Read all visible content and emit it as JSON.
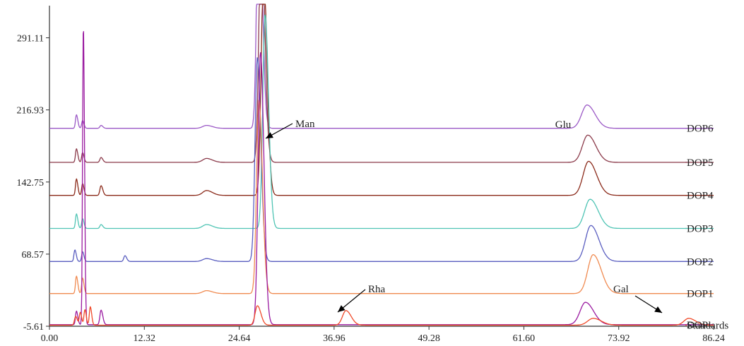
{
  "chart_data": {
    "type": "line",
    "title": "",
    "xlabel": "",
    "ylabel": "",
    "xlim": [
      0.0,
      86.24
    ],
    "ylim": [
      -5.61,
      330
    ],
    "x_ticks": [
      "0.00",
      "12.32",
      "24.64",
      "36.96",
      "49.28",
      "61.60",
      "73.92",
      "86.24"
    ],
    "y_ticks": [
      "-5.61",
      "68.57",
      "142.75",
      "216.93",
      "291.11"
    ],
    "x_tick_values": [
      0.0,
      12.32,
      24.64,
      36.96,
      49.28,
      61.6,
      73.92,
      86.24
    ],
    "y_tick_values": [
      -5.61,
      68.57,
      142.75,
      216.93,
      291.11
    ],
    "series": [
      {
        "name": "DOP6",
        "color": "#9b59c6",
        "baseline": 198,
        "peaks": [
          {
            "x": 3.5,
            "h": 14,
            "w": 0.12
          },
          {
            "x": 4.3,
            "h": 8,
            "w": 0.12
          },
          {
            "x": 6.7,
            "h": 3,
            "w": 0.15
          },
          {
            "x": 20.4,
            "h": 3,
            "w": 0.5
          },
          {
            "x": 27.2,
            "h": 260,
            "w": 0.28
          },
          {
            "x": 69.8,
            "h": 24,
            "w": 0.7
          }
        ]
      },
      {
        "name": "DOP5",
        "color": "#8b3a4a",
        "baseline": 163,
        "peaks": [
          {
            "x": 3.5,
            "h": 14,
            "w": 0.12
          },
          {
            "x": 4.3,
            "h": 10,
            "w": 0.12
          },
          {
            "x": 6.7,
            "h": 5,
            "w": 0.15
          },
          {
            "x": 20.4,
            "h": 4,
            "w": 0.5
          },
          {
            "x": 27.5,
            "h": 240,
            "w": 0.3
          },
          {
            "x": 69.9,
            "h": 28,
            "w": 0.7
          }
        ]
      },
      {
        "name": "DOP4",
        "color": "#8b2a1a",
        "baseline": 129,
        "peaks": [
          {
            "x": 3.5,
            "h": 17,
            "w": 0.12
          },
          {
            "x": 4.3,
            "h": 12,
            "w": 0.12
          },
          {
            "x": 6.7,
            "h": 10,
            "w": 0.15
          },
          {
            "x": 20.4,
            "h": 5,
            "w": 0.5
          },
          {
            "x": 27.8,
            "h": 230,
            "w": 0.3
          },
          {
            "x": 70.0,
            "h": 35,
            "w": 0.7
          }
        ]
      },
      {
        "name": "DOP3",
        "color": "#4fc4b4",
        "baseline": 95,
        "peaks": [
          {
            "x": 3.5,
            "h": 15,
            "w": 0.12
          },
          {
            "x": 4.3,
            "h": 10,
            "w": 0.12
          },
          {
            "x": 6.7,
            "h": 4,
            "w": 0.15
          },
          {
            "x": 20.4,
            "h": 4,
            "w": 0.5
          },
          {
            "x": 28.0,
            "h": 220,
            "w": 0.3
          },
          {
            "x": 70.2,
            "h": 30,
            "w": 0.7
          }
        ]
      },
      {
        "name": "DOP2",
        "color": "#5a5ec0",
        "baseline": 61,
        "peaks": [
          {
            "x": 3.3,
            "h": 12,
            "w": 0.12
          },
          {
            "x": 4.3,
            "h": 10,
            "w": 0.12
          },
          {
            "x": 9.8,
            "h": 6,
            "w": 0.15
          },
          {
            "x": 20.4,
            "h": 3,
            "w": 0.5
          },
          {
            "x": 27.0,
            "h": 210,
            "w": 0.3
          },
          {
            "x": 70.3,
            "h": 37,
            "w": 0.7
          }
        ]
      },
      {
        "name": "DOP1",
        "color": "#f08a50",
        "baseline": 28,
        "peaks": [
          {
            "x": 3.5,
            "h": 18,
            "w": 0.12
          },
          {
            "x": 4.3,
            "h": 16,
            "w": 0.12
          },
          {
            "x": 20.4,
            "h": 3,
            "w": 0.5
          },
          {
            "x": 27.2,
            "h": 200,
            "w": 0.3
          },
          {
            "x": 70.6,
            "h": 40,
            "w": 0.7
          }
        ]
      },
      {
        "name": "DOP",
        "color": "#9a1aa0",
        "baseline": -4,
        "peaks": [
          {
            "x": 3.5,
            "h": 14,
            "w": 0.12
          },
          {
            "x": 4.4,
            "h": 310,
            "w": 0.1
          },
          {
            "x": 6.7,
            "h": 15,
            "w": 0.15
          },
          {
            "x": 27.4,
            "h": 280,
            "w": 0.3
          },
          {
            "x": 69.6,
            "h": 23,
            "w": 0.7
          }
        ]
      },
      {
        "name": "Standards",
        "color": "#f04a2a",
        "baseline": -4.5,
        "peaks": [
          {
            "x": 3.4,
            "h": 9,
            "w": 0.15
          },
          {
            "x": 4.0,
            "h": 13,
            "w": 0.12
          },
          {
            "x": 4.6,
            "h": 16,
            "w": 0.12
          },
          {
            "x": 5.3,
            "h": 19,
            "w": 0.12
          },
          {
            "x": 27.0,
            "h": 20,
            "w": 0.3
          },
          {
            "x": 38.5,
            "h": 15,
            "w": 0.45
          },
          {
            "x": 70.6,
            "h": 7,
            "w": 0.7
          },
          {
            "x": 83.0,
            "h": 7,
            "w": 0.6
          }
        ]
      }
    ],
    "annotations": [
      {
        "text": "Man",
        "x": 28.3,
        "y": 210
      },
      {
        "text": "Glu",
        "x": 70.0,
        "y": 216
      },
      {
        "text": "Rha",
        "x": 38.9,
        "y": 10
      },
      {
        "text": "Gal",
        "x": 83.2,
        "y": 8
      }
    ]
  }
}
